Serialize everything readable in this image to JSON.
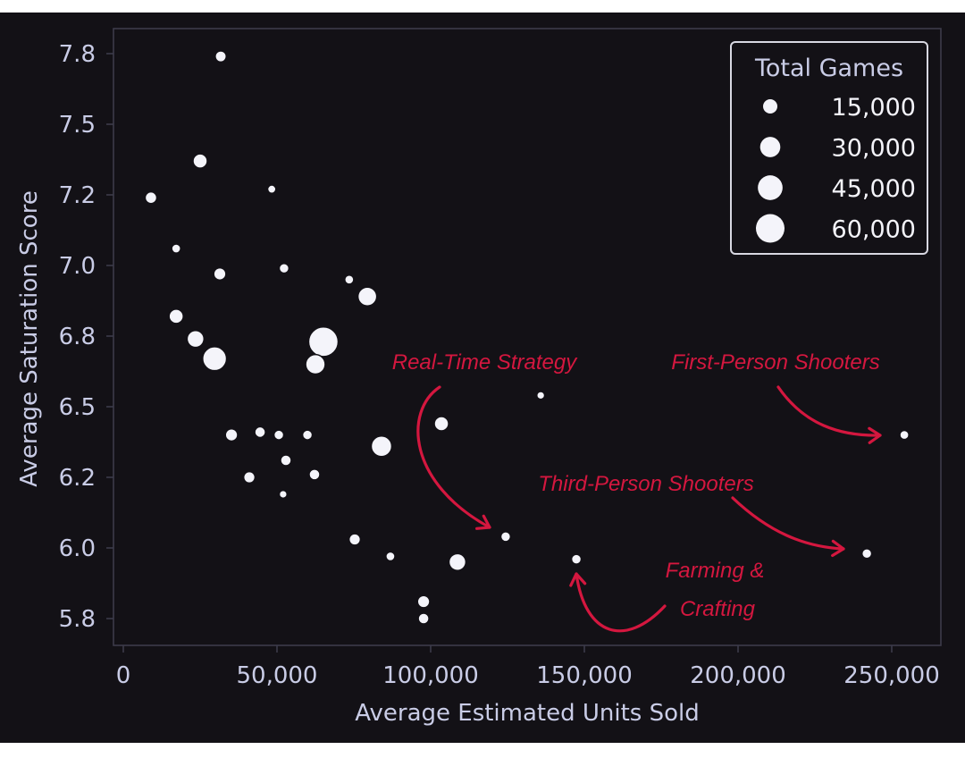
{
  "chart_data": {
    "type": "scatter",
    "title": "",
    "xlabel": "Average Estimated Units Sold",
    "ylabel": "Average Saturation Score",
    "xlim": [
      -5000,
      262000
    ],
    "ylim": [
      5.7,
      7.84
    ],
    "x_ticks": [
      0,
      50000,
      100000,
      150000,
      200000,
      250000
    ],
    "x_tick_labels": [
      "0",
      "50,000",
      "100,000",
      "150,000",
      "200,000",
      "250,000"
    ],
    "y_ticks": [
      5.75,
      6.0,
      6.25,
      6.5,
      6.75,
      7.0,
      7.25,
      7.5,
      7.75
    ],
    "y_tick_labels": [
      "5.8",
      "6.0",
      "6.2",
      "6.5",
      "6.8",
      "7.0",
      "7.2",
      "7.5",
      "7.8"
    ],
    "grid": false,
    "size_encoding": "Total Games",
    "legend": {
      "title": "Total Games",
      "position": "upper right",
      "entries": [
        {
          "label": "15,000",
          "size": 15000
        },
        {
          "label": "30,000",
          "size": 30000
        },
        {
          "label": "45,000",
          "size": 45000
        },
        {
          "label": "60,000",
          "size": 60000
        }
      ]
    },
    "points": [
      {
        "x": 31700,
        "y": 7.74,
        "size": 9000
      },
      {
        "x": 25000,
        "y": 7.37,
        "size": 15000
      },
      {
        "x": 9000,
        "y": 7.24,
        "size": 10000
      },
      {
        "x": 48300,
        "y": 7.27,
        "size": 5000
      },
      {
        "x": 17200,
        "y": 7.06,
        "size": 6000
      },
      {
        "x": 31400,
        "y": 6.97,
        "size": 11000
      },
      {
        "x": 52300,
        "y": 6.99,
        "size": 7000
      },
      {
        "x": 73500,
        "y": 6.95,
        "size": 6000
      },
      {
        "x": 79400,
        "y": 6.89,
        "size": 26000
      },
      {
        "x": 17200,
        "y": 6.82,
        "size": 15000
      },
      {
        "x": 23500,
        "y": 6.74,
        "size": 21000
      },
      {
        "x": 29700,
        "y": 6.67,
        "size": 42000
      },
      {
        "x": 65100,
        "y": 6.73,
        "size": 64000
      },
      {
        "x": 62500,
        "y": 6.65,
        "size": 28000
      },
      {
        "x": 135800,
        "y": 6.54,
        "size": 4500
      },
      {
        "x": 103500,
        "y": 6.44,
        "size": 15000
      },
      {
        "x": 35200,
        "y": 6.4,
        "size": 11000
      },
      {
        "x": 44500,
        "y": 6.41,
        "size": 8500
      },
      {
        "x": 50600,
        "y": 6.4,
        "size": 7000
      },
      {
        "x": 59900,
        "y": 6.4,
        "size": 7000
      },
      {
        "x": 84000,
        "y": 6.36,
        "size": 31000
      },
      {
        "x": 52900,
        "y": 6.31,
        "size": 8500
      },
      {
        "x": 41000,
        "y": 6.25,
        "size": 9500
      },
      {
        "x": 62200,
        "y": 6.26,
        "size": 8500
      },
      {
        "x": 52000,
        "y": 6.19,
        "size": 4500
      },
      {
        "x": 254100,
        "y": 6.4,
        "size": 6000
      },
      {
        "x": 124400,
        "y": 6.04,
        "size": 7000
      },
      {
        "x": 75300,
        "y": 6.03,
        "size": 9500
      },
      {
        "x": 86900,
        "y": 5.97,
        "size": 6000
      },
      {
        "x": 108700,
        "y": 5.95,
        "size": 21000
      },
      {
        "x": 147400,
        "y": 5.96,
        "size": 7000
      },
      {
        "x": 241900,
        "y": 5.98,
        "size": 7000
      },
      {
        "x": 97700,
        "y": 5.81,
        "size": 11000
      },
      {
        "x": 97700,
        "y": 5.75,
        "size": 8500
      }
    ],
    "annotations": [
      {
        "text": "Real-Time Strategy",
        "target": {
          "x": 124400,
          "y": 6.04
        }
      },
      {
        "text": "First-Person Shooters",
        "target": {
          "x": 254100,
          "y": 6.4
        }
      },
      {
        "text": "Third-Person Shooters",
        "target": {
          "x": 241900,
          "y": 5.98
        }
      },
      {
        "text": "Farming & Crafting",
        "target": {
          "x": 147400,
          "y": 5.96
        }
      }
    ],
    "colors": {
      "background": "#131116",
      "marker": "#f4f4fa",
      "marker_edge": "#131116",
      "axis": "#3c3b4a",
      "text": "#c9cce6",
      "annotation": "#d4173f"
    }
  },
  "annotations": {
    "rts": "Real-Time Strategy",
    "fps": "First-Person Shooters",
    "tps": "Third-Person Shooters",
    "farming_line1": "Farming &",
    "farming_line2": "Crafting"
  }
}
